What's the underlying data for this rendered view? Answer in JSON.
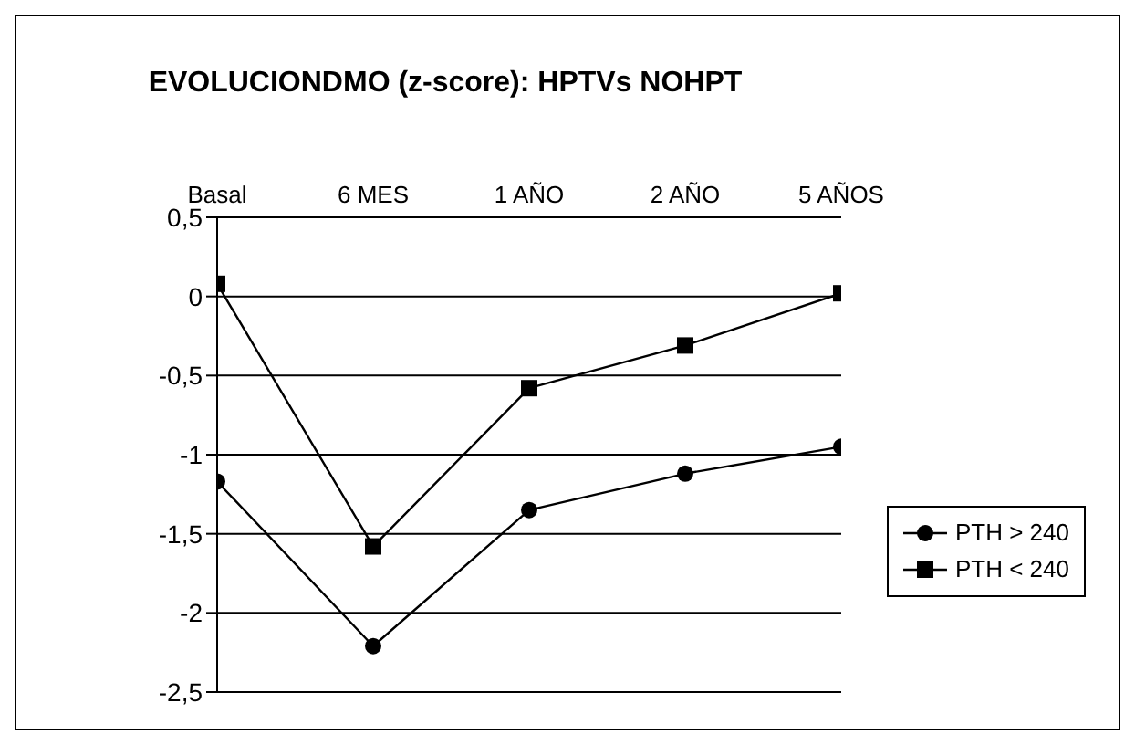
{
  "chart_data": {
    "type": "line",
    "title": "EVOLUCIONDMO (z-score): HPTVs NOHPT",
    "categories": [
      "Basal",
      "6 MES",
      "1 AÑO",
      "2 AÑO",
      "5 AÑOS"
    ],
    "series": [
      {
        "name": "PTH > 240",
        "color": "#000000",
        "marker": "circle",
        "values": [
          -1.17,
          -2.21,
          -1.35,
          -1.12,
          -0.95
        ]
      },
      {
        "name": "PTH < 240",
        "color": "#000000",
        "marker": "square",
        "values": [
          0.08,
          -1.58,
          -0.58,
          -0.31,
          0.02
        ]
      }
    ],
    "ylim": [
      -2.5,
      0.5
    ],
    "yticks": [
      {
        "value": 0.5,
        "label": "0,5"
      },
      0,
      {
        "value": -0.5,
        "label": "-0,5"
      },
      -1,
      {
        "value": -1.5,
        "label": "-1,5"
      },
      -2,
      {
        "value": -2.5,
        "label": "-2,5"
      }
    ],
    "grid": "y",
    "legend": "bottom right",
    "line_style": "solid"
  }
}
